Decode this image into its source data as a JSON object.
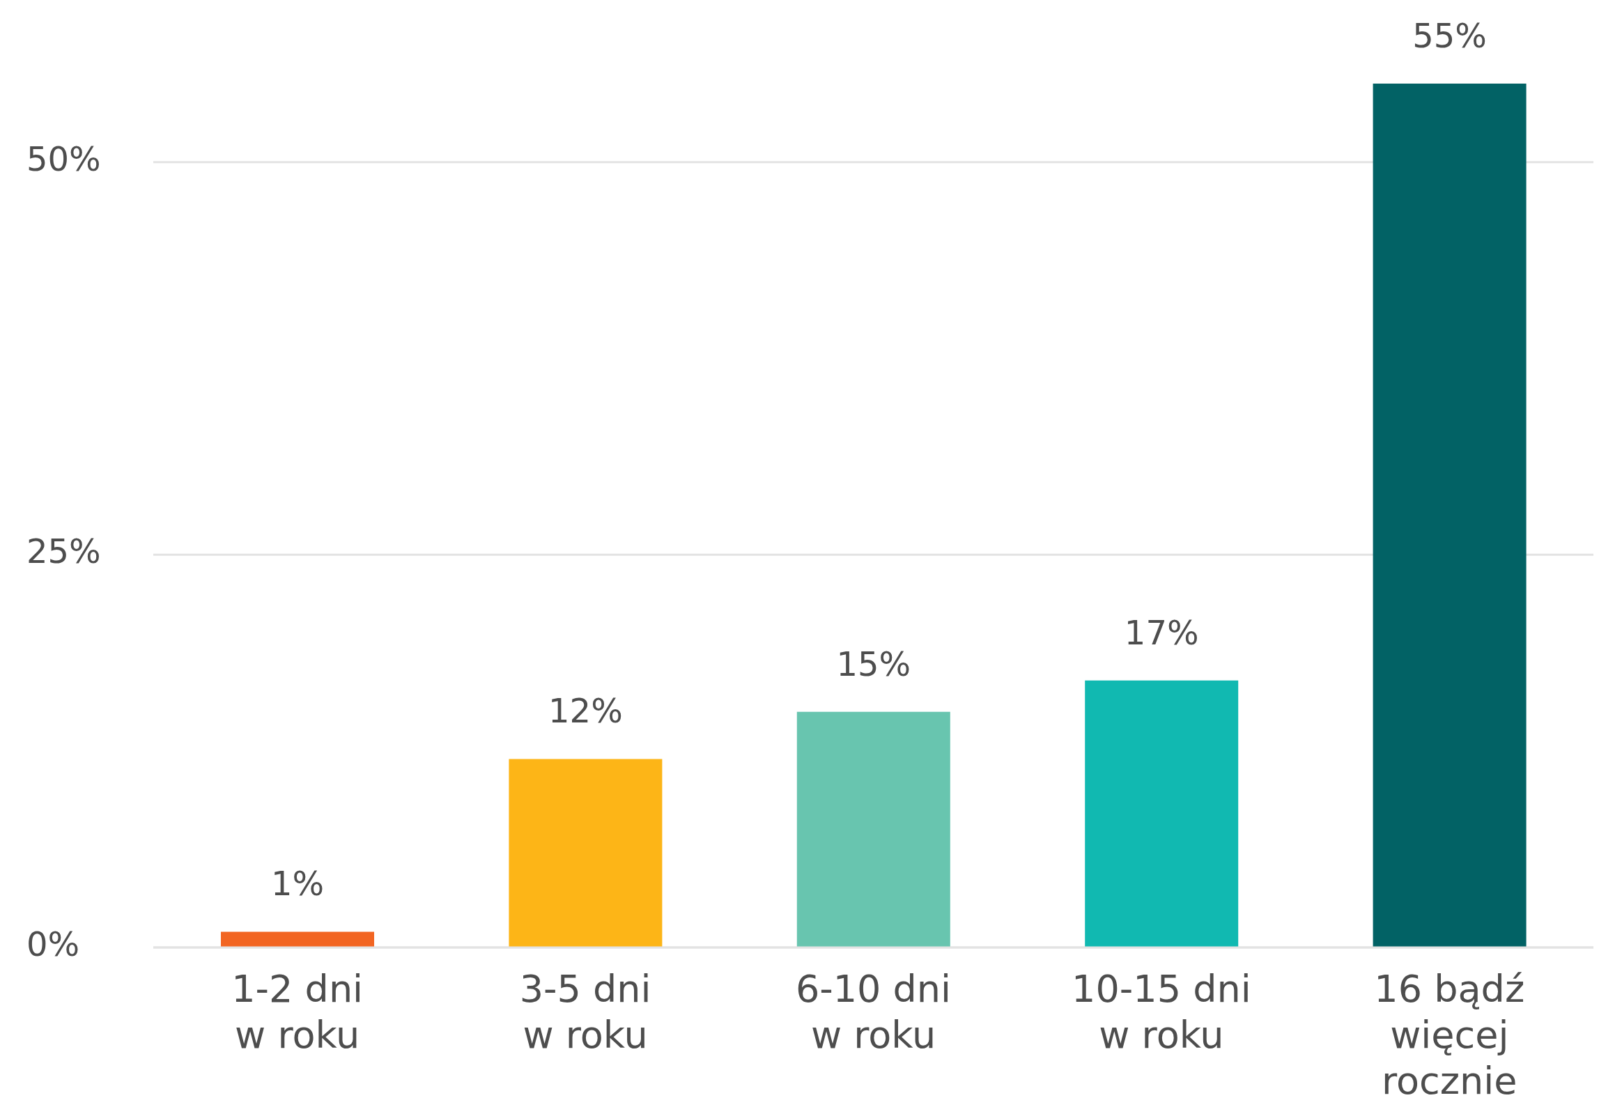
{
  "chart_data": {
    "type": "bar",
    "categories": [
      "1-2 dni\nw roku",
      "3-5 dni\nw roku",
      "6-10 dni\nw roku",
      "10-15 dni\nw roku",
      "16 bądź\nwięcej\nrocznie"
    ],
    "values": [
      1,
      12,
      15,
      17,
      55
    ],
    "colors": [
      "#f26522",
      "#fdb517",
      "#68c5af",
      "#11b9b1",
      "#026265"
    ],
    "value_labels": [
      "1%",
      "12%",
      "15%",
      "17%",
      "55%"
    ],
    "ylim": [
      0,
      55
    ],
    "yticks": [
      {
        "value": 0,
        "label": "0%"
      },
      {
        "value": 25,
        "label": "25%"
      },
      {
        "value": 50,
        "label": "50%"
      }
    ],
    "grid": "y"
  }
}
